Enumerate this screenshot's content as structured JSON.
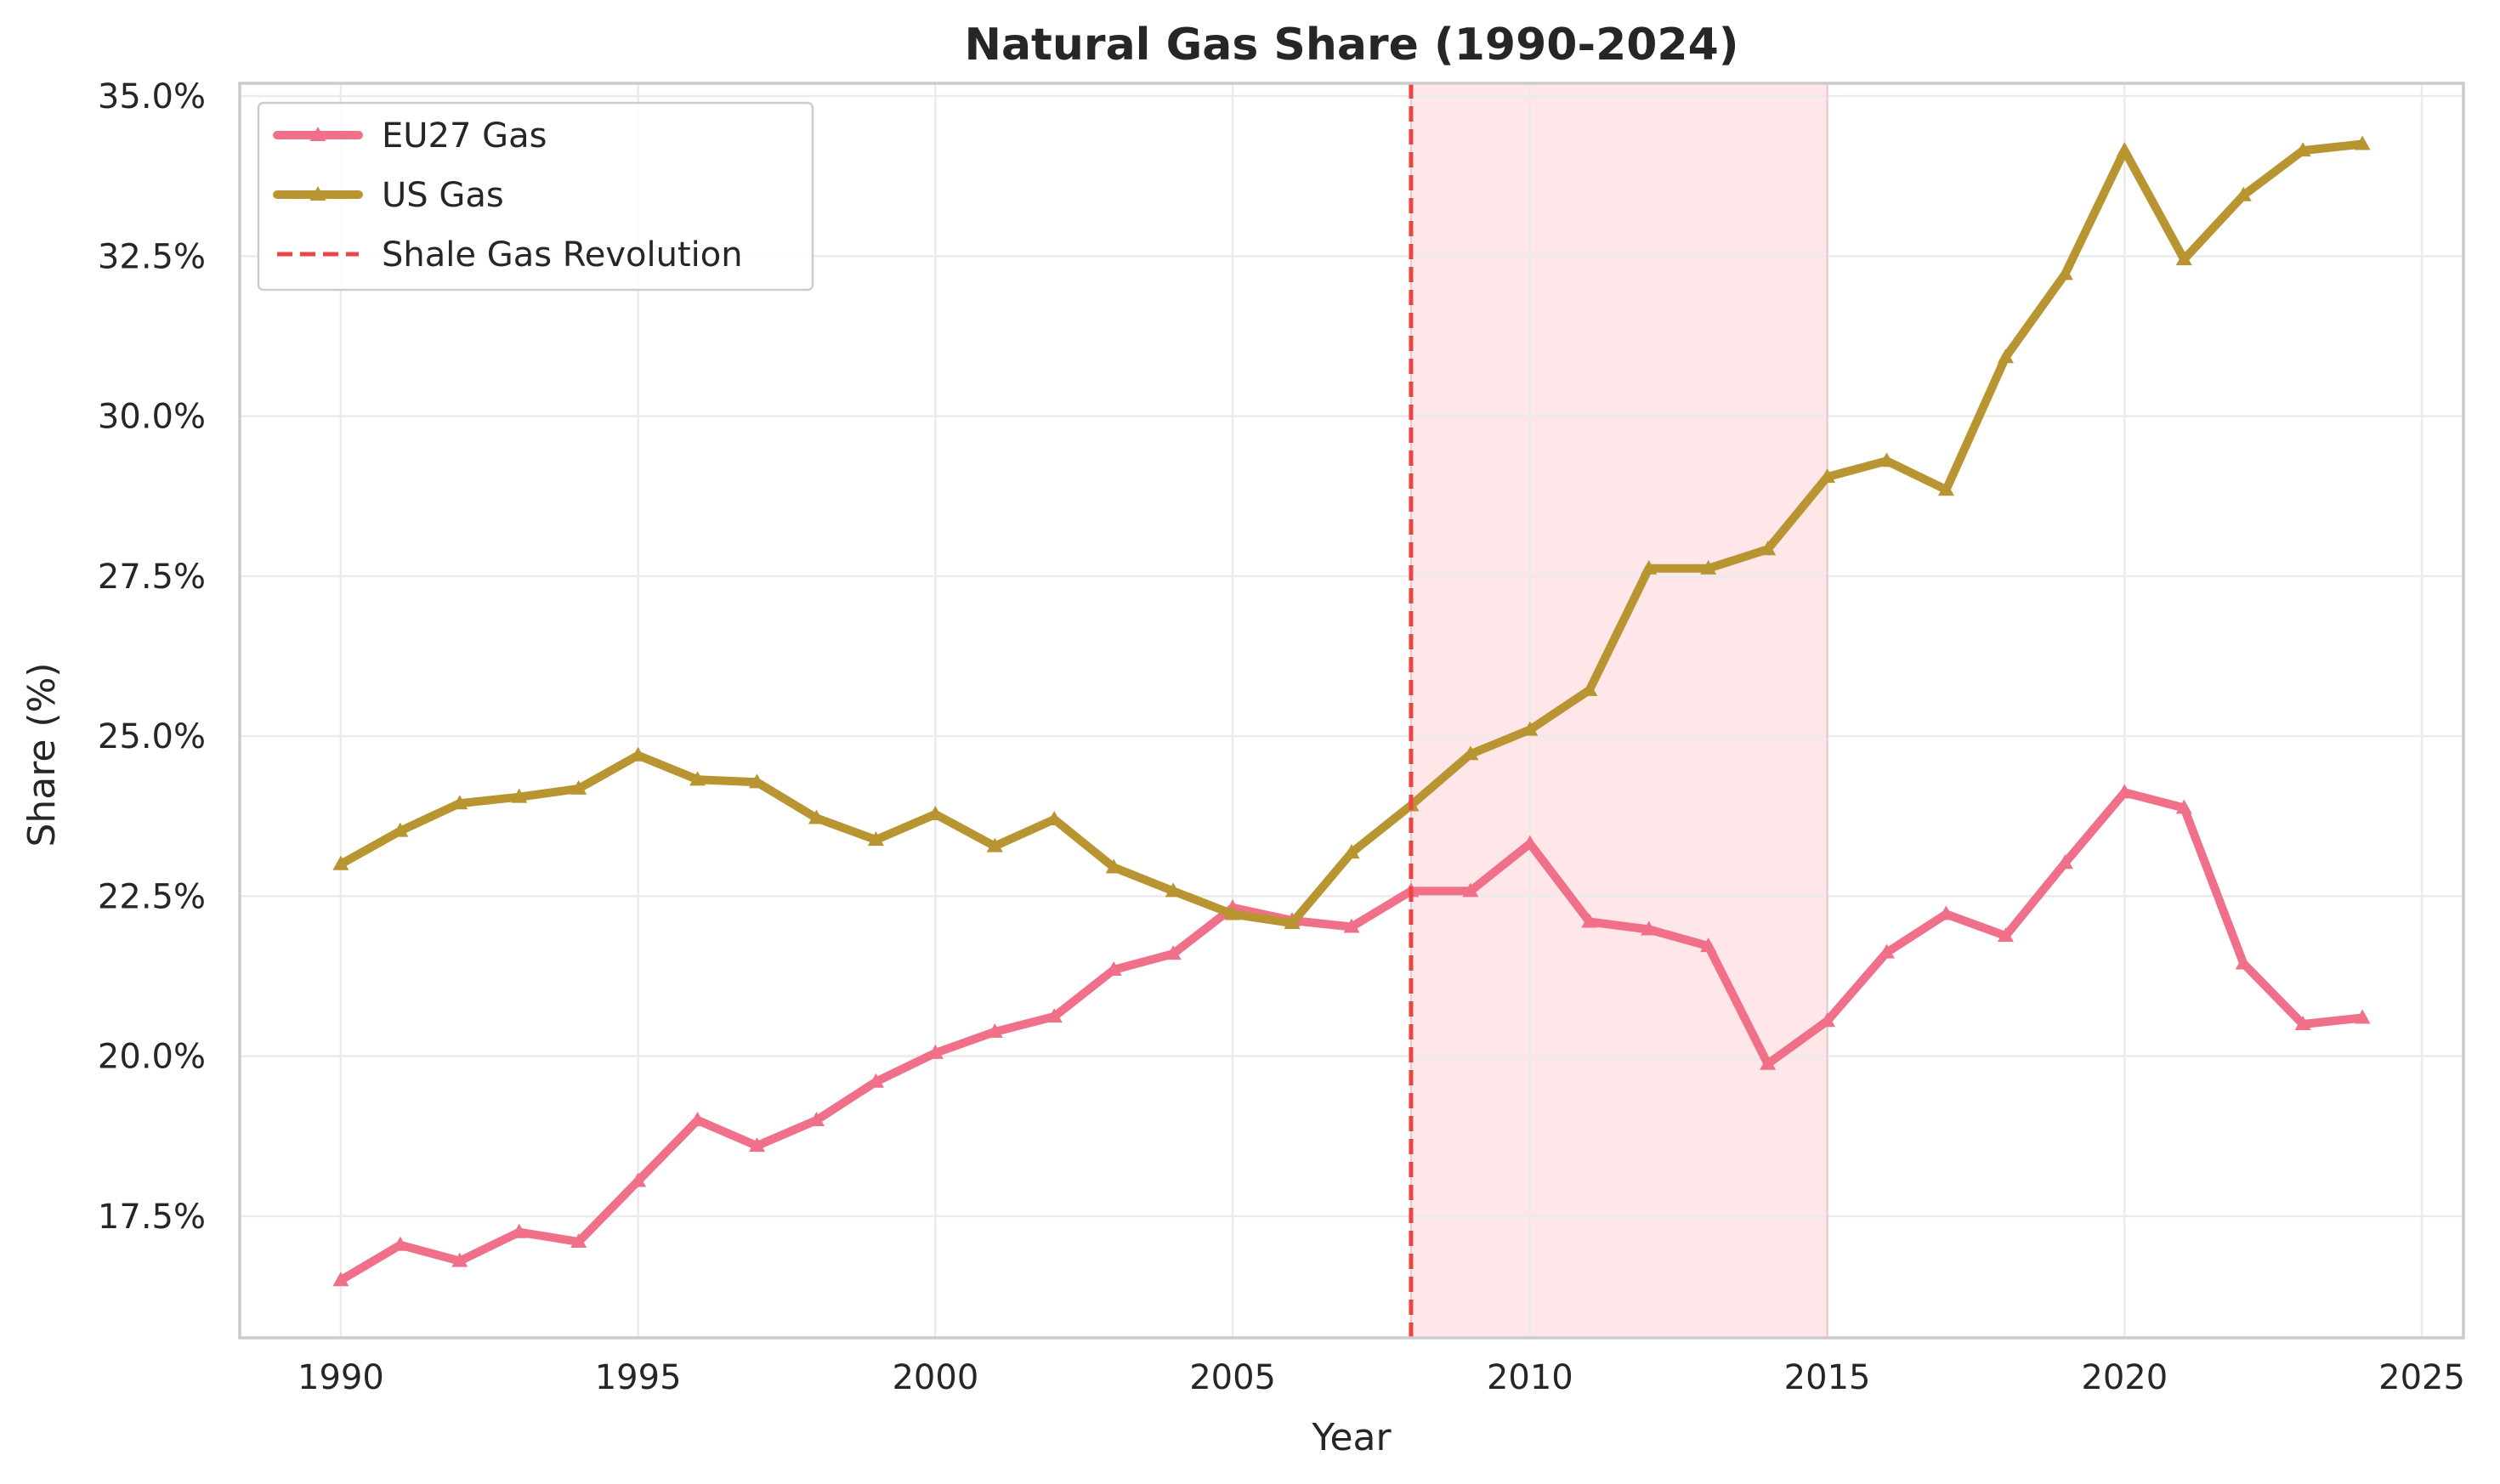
{
  "chart_data": {
    "type": "line",
    "title": "Natural Gas Share (1990-2024)",
    "xlabel": "Year",
    "ylabel": "Share (%)",
    "xlim": [
      1988.3,
      2025.7
    ],
    "ylim": [
      15.6,
      35.2
    ],
    "x_ticks": [
      1990,
      1995,
      2000,
      2005,
      2010,
      2015,
      2020,
      2025
    ],
    "y_ticks": [
      17.5,
      20.0,
      22.5,
      25.0,
      27.5,
      30.0,
      32.5,
      35.0
    ],
    "y_tick_labels": [
      "17.5%",
      "20.0%",
      "22.5%",
      "25.0%",
      "27.5%",
      "30.0%",
      "32.5%",
      "35.0%"
    ],
    "grid": true,
    "legend_position": "top-left",
    "x": [
      1990,
      1991,
      1992,
      1993,
      1994,
      1995,
      1996,
      1997,
      1998,
      1999,
      2000,
      2001,
      2002,
      2003,
      2004,
      2005,
      2006,
      2007,
      2008,
      2009,
      2010,
      2011,
      2012,
      2013,
      2014,
      2015,
      2016,
      2017,
      2018,
      2019,
      2020,
      2021,
      2022,
      2023,
      2024
    ],
    "series": [
      {
        "name": "EU27 Gas",
        "color": "#f0708a",
        "marker": "triangle",
        "values": [
          16.5,
          17.05,
          16.8,
          17.25,
          17.1,
          18.05,
          19.0,
          18.6,
          19.0,
          19.6,
          20.05,
          20.38,
          20.62,
          21.35,
          21.6,
          22.32,
          22.12,
          22.02,
          22.58,
          22.58,
          23.32,
          22.1,
          21.98,
          21.72,
          19.88,
          20.55,
          21.62,
          22.22,
          21.88,
          23.02,
          24.12,
          23.88,
          21.45,
          20.5,
          20.6
        ]
      },
      {
        "name": "US Gas",
        "color": "#b89530",
        "marker": "triangle",
        "values": [
          23.0,
          23.52,
          23.95,
          24.05,
          24.18,
          24.7,
          24.32,
          24.28,
          23.72,
          23.38,
          23.78,
          23.28,
          23.7,
          22.95,
          22.58,
          22.22,
          22.08,
          23.18,
          23.92,
          24.72,
          25.1,
          25.72,
          27.62,
          27.62,
          27.92,
          29.05,
          29.3,
          28.85,
          30.92,
          32.22,
          34.15,
          32.45,
          33.45,
          34.15,
          34.25
        ]
      }
    ],
    "annotations": [
      {
        "type": "vline",
        "x": 2008,
        "color": "#ee4444",
        "style": "dashed",
        "label": "Shale Gas Revolution"
      },
      {
        "type": "vspan",
        "x0": 2008,
        "x1": 2015,
        "color": "#ffe6e8"
      }
    ],
    "colors": {
      "axes_edge": "#cccccc",
      "grid": "#ebebeb",
      "text": "#262626"
    }
  }
}
